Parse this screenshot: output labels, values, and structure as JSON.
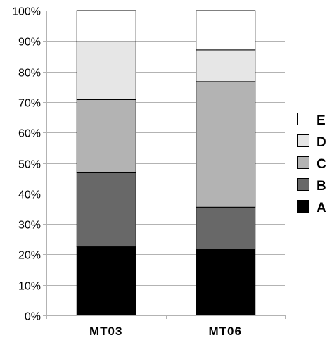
{
  "chart_data": {
    "type": "bar",
    "stacked": true,
    "categories": [
      "MT03",
      "MT06"
    ],
    "series": [
      {
        "name": "A",
        "color": "#000000",
        "values": [
          22.5,
          21.8
        ]
      },
      {
        "name": "B",
        "color": "#686868",
        "values": [
          24.5,
          13.7
        ]
      },
      {
        "name": "C",
        "color": "#b3b3b3",
        "values": [
          23.8,
          41.2
        ]
      },
      {
        "name": "D",
        "color": "#e6e6e6",
        "values": [
          19.0,
          10.4
        ]
      },
      {
        "name": "E",
        "color": "#ffffff",
        "values": [
          10.2,
          12.9
        ]
      }
    ],
    "ylim": [
      0,
      100
    ],
    "yticks": [
      "0%",
      "10%",
      "20%",
      "30%",
      "40%",
      "50%",
      "60%",
      "70%",
      "80%",
      "90%",
      "100%"
    ],
    "grid": true,
    "legend_position": "right",
    "legend_order": [
      "E",
      "D",
      "C",
      "B",
      "A"
    ]
  }
}
